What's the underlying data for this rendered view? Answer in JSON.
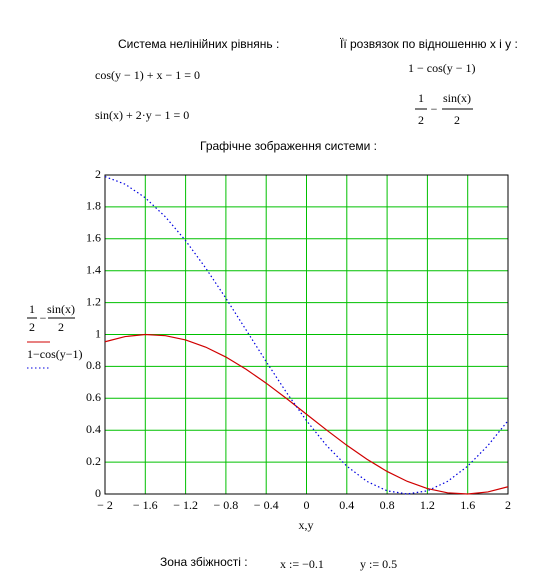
{
  "header": {
    "system_title": "Система нелінійних рівнянь :",
    "solution_title": "Її розвязок по відношенню x і y :",
    "equation_1": "cos(y − 1) + x − 1 = 0",
    "equation_2": "sin(x) + 2·y − 1 = 0",
    "solution_1": "1 − cos(y − 1)",
    "solution_2": {
      "num_1": "1",
      "den_1": "2",
      "op": "−",
      "num_2": "sin(x)",
      "den_2": "2"
    },
    "graph_title": "Графічне зображення системи  :"
  },
  "chart_data": {
    "type": "line",
    "xlabel": "x,y",
    "x": [
      -2,
      -1.8,
      -1.6,
      -1.4,
      -1.2,
      -1,
      -0.8,
      -0.6,
      -0.4,
      -0.2,
      0,
      0.2,
      0.4,
      0.6,
      0.8,
      1,
      1.2,
      1.4,
      1.6,
      1.8,
      2
    ],
    "series": [
      {
        "name": {
          "num_1": "1",
          "den_1": "2",
          "op": "−",
          "num_2": "sin(x)",
          "den_2": "2"
        },
        "color": "#d00000",
        "dash": "solid",
        "values": [
          0.9546,
          0.9869,
          0.9998,
          0.9927,
          0.966,
          0.9207,
          0.8587,
          0.7823,
          0.6947,
          0.5993,
          0.5,
          0.4007,
          0.3053,
          0.2177,
          0.1413,
          0.0793,
          0.034,
          0.0073,
          0.0002,
          0.0131,
          0.0454
        ]
      },
      {
        "name": "1−cos(y−1)",
        "color": "#0000e0",
        "dash": "dotted",
        "values": [
          1.99,
          1.9422,
          1.8569,
          1.7374,
          1.5885,
          1.4161,
          1.2272,
          1.0292,
          0.83,
          0.6376,
          0.4597,
          0.3033,
          0.1747,
          0.0789,
          0.0199,
          0,
          0.0199,
          0.0789,
          0.1747,
          0.3033,
          0.4597
        ]
      }
    ],
    "xlim": [
      -2,
      2
    ],
    "xticks": [
      {
        "value": -2,
        "label": "− 2"
      },
      {
        "value": -1.6,
        "label": "− 1.6"
      },
      {
        "value": -1.2,
        "label": "− 1.2"
      },
      {
        "value": -0.8,
        "label": "− 0.8"
      },
      {
        "value": -0.4,
        "label": "− 0.4"
      },
      0,
      0.4,
      0.8,
      1.2,
      1.6,
      2
    ],
    "ylim": [
      0,
      2
    ],
    "yticks": [
      0,
      0.2,
      0.4,
      0.6,
      0.8,
      1,
      1.2,
      1.4,
      1.6,
      1.8,
      2
    ],
    "grid": true
  },
  "footer": {
    "label": "Зона збіжності :",
    "x_guess": "x := −0.1",
    "y_guess": "y := 0.5"
  }
}
